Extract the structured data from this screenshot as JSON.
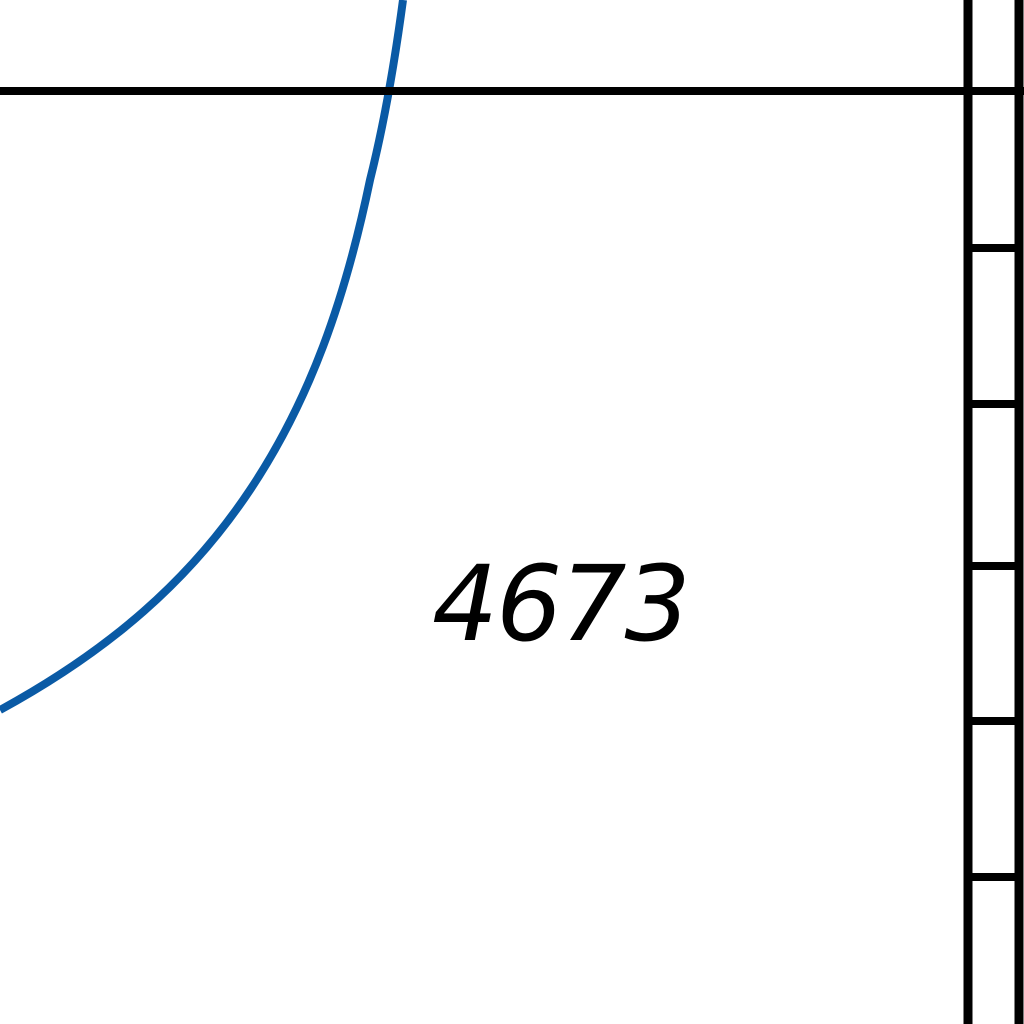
{
  "map": {
    "parcel_label": "4673",
    "colors": {
      "background": "#ffffff",
      "boundary_line": "#000000",
      "contour_line": "#0a5aa5",
      "label_text": "#000000"
    },
    "features": [
      {
        "kind": "contour-curve",
        "color": "contour_line"
      },
      {
        "kind": "parcel-boundary",
        "color": "boundary_line"
      },
      {
        "kind": "railroad-track",
        "color": "boundary_line"
      }
    ]
  }
}
